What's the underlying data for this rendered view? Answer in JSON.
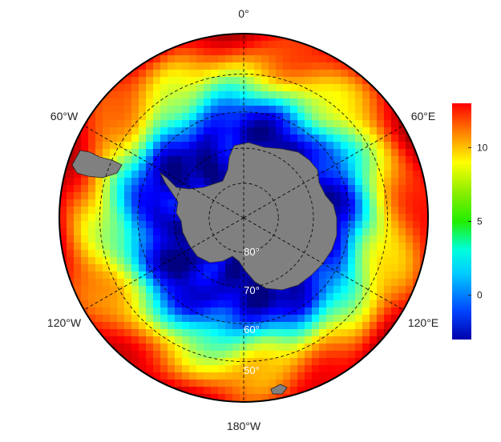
{
  "map": {
    "projection": "south-polar-stereographic",
    "longitude_labels": [
      "0°",
      "60°E",
      "120°E",
      "180°W",
      "120°W",
      "60°W"
    ],
    "latitude_labels": [
      "80°",
      "70°",
      "60°",
      "50°"
    ],
    "latitude_circles": [
      80,
      70,
      60,
      50
    ],
    "meridians": [
      0,
      60,
      120,
      180,
      240,
      300
    ],
    "colors": {
      "land": "#808080",
      "frame": "#000000",
      "grid": "#000000",
      "background": "#ffffff"
    }
  },
  "colorbar": {
    "colormap": "jet",
    "min": -3,
    "max": 13,
    "ticks": [
      {
        "value": 0,
        "label": "0"
      },
      {
        "value": 5,
        "label": "5"
      },
      {
        "value": 10,
        "label": "10"
      }
    ]
  },
  "chart_data": {
    "type": "heatmap",
    "description_of_field": "gridded scalar field over the Southern Ocean, values increase from the Antarctic coast toward lower latitudes",
    "radial_profile": [
      {
        "lat": -65,
        "value": -2
      },
      {
        "lat": -60,
        "value": 0
      },
      {
        "lat": -55,
        "value": 4
      },
      {
        "lat": -50,
        "value": 7
      },
      {
        "lat": -45,
        "value": 9
      },
      {
        "lat": -40,
        "value": 11
      }
    ],
    "colorbar_range": [
      -3,
      13
    ]
  }
}
